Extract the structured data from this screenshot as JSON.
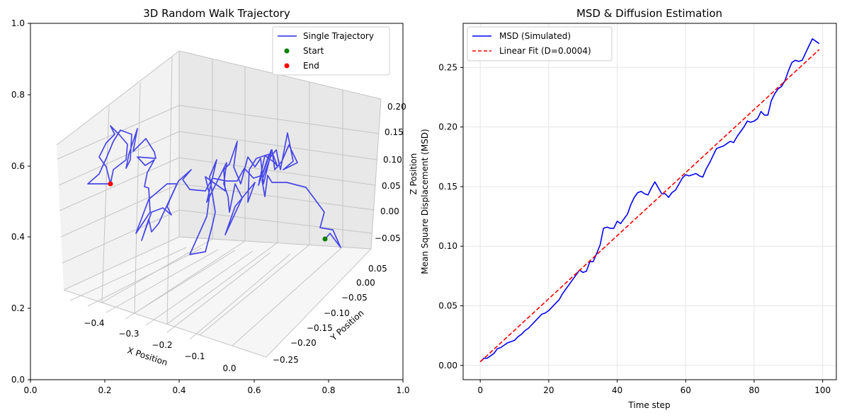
{
  "chart_data": [
    {
      "type": "line",
      "projection": "3d",
      "title": "3D Random Walk Trajectory",
      "xlabel": "X Position",
      "ylabel": "Y Position",
      "zlabel": "Z Position",
      "xticks": [
        "−0.4",
        "−0.3",
        "−0.2",
        "−0.1",
        "0.0"
      ],
      "yticks": [
        "0.05",
        "0.00",
        "−0.05",
        "−0.10",
        "−0.15",
        "−0.20",
        "−0.25"
      ],
      "zticks": [
        "0.20",
        "0.15",
        "0.10",
        "0.05",
        "0.00",
        "−0.05"
      ],
      "frame_xticks": [
        "0.0",
        "0.2",
        "0.4",
        "0.6",
        "0.8",
        "1.0"
      ],
      "frame_yticks": [
        "0.0",
        "0.2",
        "0.4",
        "0.6",
        "0.8",
        "1.0"
      ],
      "legend": [
        "Single Trajectory",
        "Start",
        "End"
      ],
      "legend_position": "top-right",
      "grid": true,
      "colors": {
        "trajectory": "#4646e8",
        "start": "#008000",
        "end": "#ff0000"
      },
      "start_point": {
        "x": 0.0,
        "y": 0.0,
        "z": 0.0
      },
      "end_point": {
        "x": -0.45,
        "y": -0.1,
        "z": 0.1
      }
    },
    {
      "type": "line",
      "title": "MSD & Diffusion Estimation",
      "xlabel": "Time step",
      "ylabel": "Mean Square Displacement (MSD)",
      "xlim": [
        -5,
        104
      ],
      "ylim": [
        -0.012,
        0.287
      ],
      "xticks": [
        0,
        20,
        40,
        60,
        80,
        100
      ],
      "yticks": [
        0.0,
        0.05,
        0.1,
        0.15,
        0.2,
        0.25
      ],
      "ytick_labels": [
        "0.00",
        "0.05",
        "0.10",
        "0.15",
        "0.20",
        "0.25"
      ],
      "grid": true,
      "legend_position": "top-left",
      "series": [
        {
          "name": "MSD (Simulated)",
          "color": "#0000ff",
          "style": "solid",
          "x": [
            0,
            1,
            2,
            3,
            4,
            5,
            6,
            7,
            8,
            9,
            10,
            11,
            12,
            13,
            14,
            15,
            16,
            17,
            18,
            19,
            20,
            21,
            22,
            23,
            24,
            25,
            26,
            27,
            28,
            29,
            30,
            31,
            32,
            33,
            34,
            35,
            36,
            37,
            38,
            39,
            40,
            41,
            42,
            43,
            44,
            45,
            46,
            47,
            48,
            49,
            50,
            51,
            52,
            53,
            54,
            55,
            56,
            57,
            58,
            59,
            60,
            61,
            62,
            63,
            64,
            65,
            66,
            67,
            68,
            69,
            70,
            71,
            72,
            73,
            74,
            75,
            76,
            77,
            78,
            79,
            80,
            81,
            82,
            83,
            84,
            85,
            86,
            87,
            88,
            89,
            90,
            91,
            92,
            93,
            94,
            95,
            96,
            97,
            98,
            99
          ],
          "y": [
            0.003,
            0.006,
            0.006,
            0.008,
            0.01,
            0.014,
            0.015,
            0.017,
            0.019,
            0.02,
            0.021,
            0.024,
            0.026,
            0.029,
            0.031,
            0.034,
            0.037,
            0.04,
            0.043,
            0.044,
            0.046,
            0.049,
            0.052,
            0.055,
            0.06,
            0.064,
            0.068,
            0.072,
            0.076,
            0.08,
            0.078,
            0.079,
            0.087,
            0.087,
            0.094,
            0.101,
            0.115,
            0.116,
            0.115,
            0.115,
            0.121,
            0.119,
            0.123,
            0.127,
            0.135,
            0.141,
            0.145,
            0.146,
            0.144,
            0.143,
            0.149,
            0.154,
            0.149,
            0.144,
            0.144,
            0.141,
            0.145,
            0.147,
            0.152,
            0.157,
            0.16,
            0.159,
            0.16,
            0.161,
            0.159,
            0.158,
            0.165,
            0.17,
            0.176,
            0.182,
            0.183,
            0.184,
            0.186,
            0.188,
            0.187,
            0.192,
            0.196,
            0.2,
            0.205,
            0.204,
            0.205,
            0.207,
            0.213,
            0.21,
            0.21,
            0.222,
            0.228,
            0.232,
            0.234,
            0.239,
            0.247,
            0.254,
            0.256,
            0.255,
            0.256,
            0.262,
            0.268,
            0.274,
            0.272,
            0.27
          ]
        },
        {
          "name": "Linear Fit (D=0.0004)",
          "color": "#ff0000",
          "style": "dashed",
          "x": [
            0,
            99
          ],
          "y": [
            0.003,
            0.265
          ]
        }
      ]
    }
  ]
}
